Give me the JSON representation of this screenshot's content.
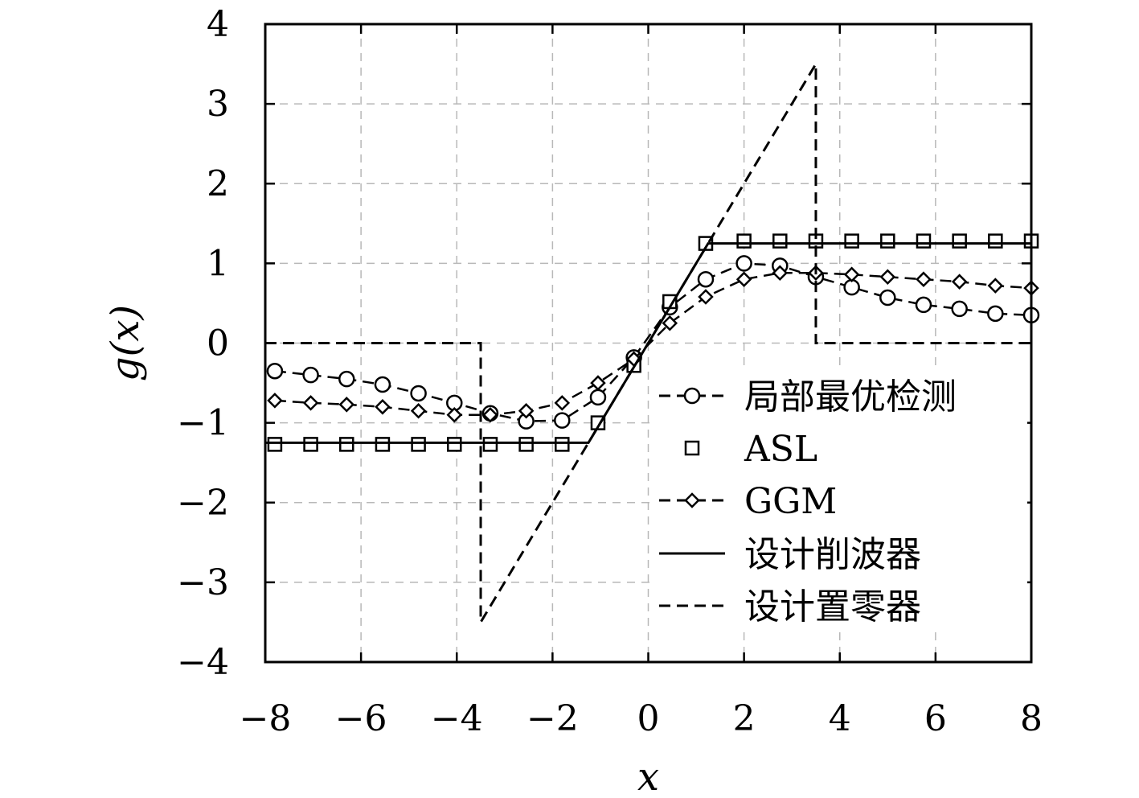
{
  "chart_data": {
    "type": "line",
    "title": "",
    "xlabel": "x",
    "ylabel": "g(x)",
    "xlim": [
      -8,
      8
    ],
    "ylim": [
      -4,
      4
    ],
    "xticks": [
      -8,
      -6,
      -4,
      -2,
      0,
      2,
      4,
      6,
      8
    ],
    "yticks": [
      -4,
      -3,
      -2,
      -1,
      0,
      1,
      2,
      3,
      4
    ],
    "xtick_labels": [
      "−8",
      "−6",
      "−4",
      "−2",
      "0",
      "2",
      "4",
      "6",
      "8"
    ],
    "ytick_labels": [
      "−4",
      "−3",
      "−2",
      "−1",
      "0",
      "1",
      "2",
      "3",
      "4"
    ],
    "grid": true,
    "legend_position": "bottom-right",
    "series": [
      {
        "name": "局部最优检测",
        "style": "dashed-circle",
        "x": [
          -7.8,
          -7.05,
          -6.3,
          -5.55,
          -4.8,
          -4.05,
          -3.3,
          -2.55,
          -1.8,
          -1.05,
          -0.3,
          0.45,
          1.2,
          2.0,
          2.75,
          3.5,
          4.25,
          5.0,
          5.75,
          6.5,
          7.25,
          8.0
        ],
        "y": [
          -0.35,
          -0.4,
          -0.45,
          -0.52,
          -0.63,
          -0.75,
          -0.88,
          -0.98,
          -0.97,
          -0.68,
          -0.18,
          0.45,
          0.8,
          1.0,
          0.97,
          0.83,
          0.7,
          0.57,
          0.48,
          0.43,
          0.37,
          0.35
        ]
      },
      {
        "name": "ASL",
        "style": "square-markers",
        "x": [
          -7.8,
          -7.05,
          -6.3,
          -5.55,
          -4.8,
          -4.05,
          -3.3,
          -2.55,
          -1.8,
          -1.05,
          -0.3,
          0.45,
          1.2,
          2.0,
          2.75,
          3.5,
          4.25,
          5.0,
          5.75,
          6.5,
          7.25,
          8.0
        ],
        "y": [
          -1.27,
          -1.27,
          -1.27,
          -1.27,
          -1.27,
          -1.27,
          -1.27,
          -1.27,
          -1.27,
          -1.0,
          -0.28,
          0.52,
          1.25,
          1.28,
          1.28,
          1.28,
          1.28,
          1.28,
          1.28,
          1.28,
          1.28,
          1.28
        ]
      },
      {
        "name": "GGM",
        "style": "dashed-diamond",
        "x": [
          -7.8,
          -7.05,
          -6.3,
          -5.55,
          -4.8,
          -4.05,
          -3.3,
          -2.55,
          -1.8,
          -1.05,
          -0.3,
          0.45,
          1.2,
          2.0,
          2.75,
          3.5,
          4.25,
          5.0,
          5.75,
          6.5,
          7.25,
          8.0
        ],
        "y": [
          -0.72,
          -0.75,
          -0.77,
          -0.8,
          -0.85,
          -0.9,
          -0.9,
          -0.85,
          -0.75,
          -0.5,
          -0.2,
          0.25,
          0.58,
          0.8,
          0.88,
          0.88,
          0.86,
          0.83,
          0.8,
          0.77,
          0.72,
          0.69
        ]
      },
      {
        "name": "设计削波器",
        "style": "solid",
        "x": [
          -8,
          -1.25,
          1.25,
          8
        ],
        "y": [
          -1.25,
          -1.25,
          1.25,
          1.25
        ]
      },
      {
        "name": "设计置零器",
        "style": "dashed",
        "x": [
          -8,
          -3.5,
          -3.5,
          3.5,
          3.5,
          8
        ],
        "y": [
          0,
          0,
          -3.5,
          3.5,
          0,
          0
        ]
      }
    ]
  }
}
